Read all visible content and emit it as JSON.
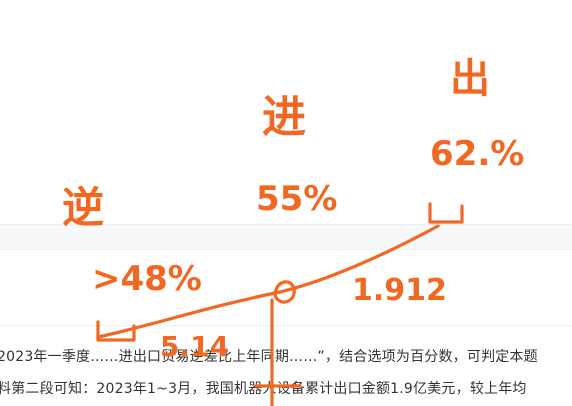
{
  "document": {
    "lines": [
      "2023年一季度……进出口贸易逆差比上年同期……”，结合选项为百分数，可判定本题",
      "料第二段可知：2023年1~3月，我国机器人设备累计出口金额1.9亿美元，较上年均"
    ]
  },
  "annotations": {
    "color": "#f26722",
    "label_chu": "出",
    "label_chu_pct": "62.%",
    "label_jin": "进",
    "label_jin_pct": "55%",
    "label_ni": "逆",
    "label_ni_pct": ">48%",
    "value_right": "1.912",
    "value_left": "5.14"
  }
}
